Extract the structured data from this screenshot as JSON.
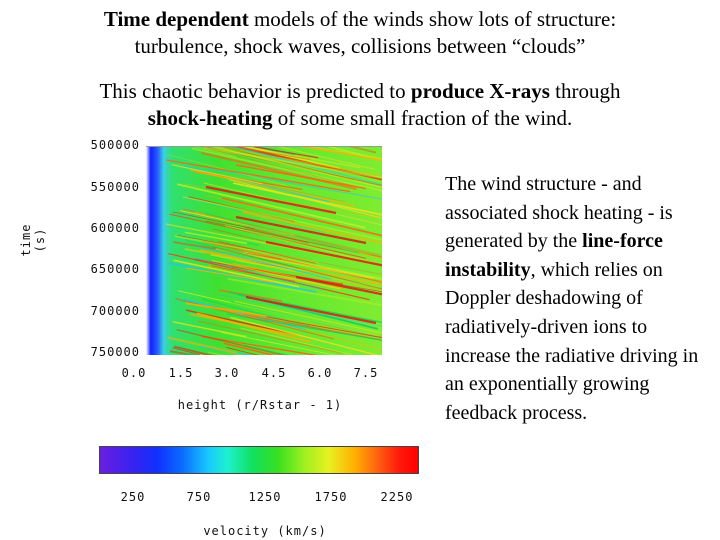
{
  "heading1": {
    "bold_lead": "Time dependent",
    "rest_line1": " models of the winds show lots of structure:",
    "line2": "turbulence, shock waves, collisions between “clouds”"
  },
  "heading2": {
    "line1_start": "This chaotic behavior is predicted to ",
    "line1_bold": "produce X-rays",
    "line1_end": " through",
    "line2_bold": "shock-heating",
    "line2_end": " of some small fraction of the wind."
  },
  "plot": {
    "y_ticks": [
      "500000",
      "550000",
      "600000",
      "650000",
      "700000",
      "750000"
    ],
    "y_label": "time (s)",
    "x_ticks": [
      "0.0",
      "1.5",
      "3.0",
      "4.5",
      "6.0",
      "7.5"
    ],
    "x_label": "height (r/Rstar - 1)"
  },
  "colorbar": {
    "ticks": [
      "250",
      "750",
      "1250",
      "1750",
      "2250"
    ],
    "label": "velocity (km/s)",
    "colors": [
      "#6a1fe0",
      "#1030ff",
      "#18c8ff",
      "#10e060",
      "#e8f020",
      "#ff5a10",
      "#ff0000"
    ]
  },
  "body_text": {
    "part1": "The wind structure - and associated shock heating - is generated by the ",
    "bold": "line-force instability",
    "part2": ", which relies on Doppler deshadowing of radiatively-driven ions to increase the radiative driving in an exponentially growing feedback process."
  }
}
